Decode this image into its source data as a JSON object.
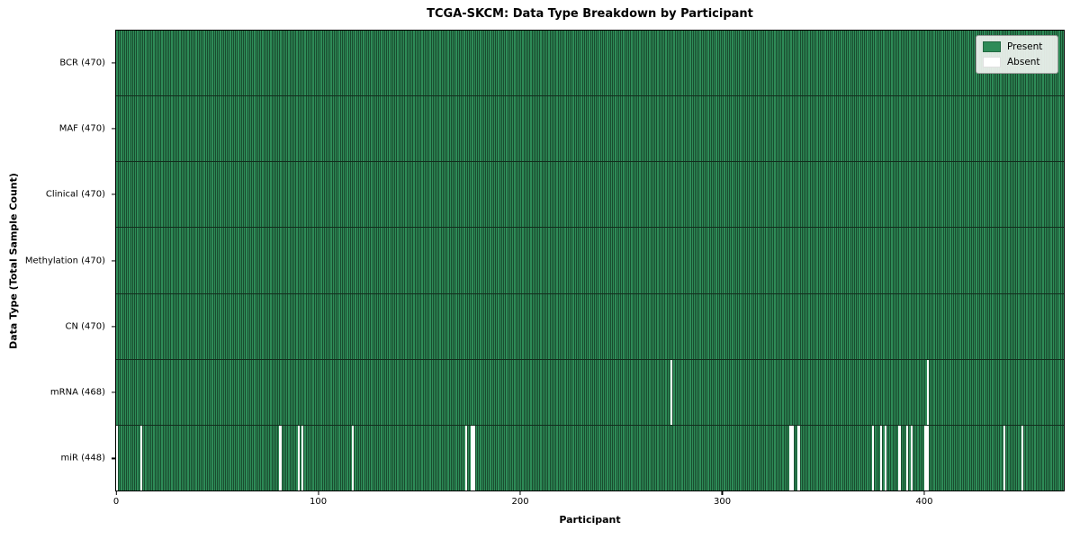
{
  "chart_data": {
    "type": "heatmap",
    "title": "TCGA-SKCM: Data Type Breakdown by Participant",
    "xlabel": "Participant",
    "ylabel": "Data Type (Total Sample Count)",
    "n_participants": 470,
    "x_ticks": [
      0,
      100,
      200,
      300,
      400
    ],
    "grid": false,
    "legend_position": "upper right",
    "rows": [
      {
        "label": "BCR (470)",
        "data_type": "BCR",
        "present_count": 470,
        "absent_participants": []
      },
      {
        "label": "MAF (470)",
        "data_type": "MAF",
        "present_count": 470,
        "absent_participants": []
      },
      {
        "label": "Clinical (470)",
        "data_type": "Clinical",
        "present_count": 470,
        "absent_participants": []
      },
      {
        "label": "Methylation (470)",
        "data_type": "Methylation",
        "present_count": 470,
        "absent_participants": []
      },
      {
        "label": "CN (470)",
        "data_type": "CN",
        "present_count": 470,
        "absent_participants": []
      },
      {
        "label": "mRNA (468)",
        "data_type": "mRNA",
        "present_count": 468,
        "absent_participants": [
          275,
          402
        ]
      },
      {
        "label": "miR (448)",
        "data_type": "miR",
        "present_count": 448,
        "absent_participants": [
          0,
          12,
          81,
          90,
          92,
          117,
          173,
          176,
          177,
          334,
          335,
          338,
          375,
          379,
          381,
          388,
          392,
          394,
          401,
          402,
          440,
          449
        ]
      }
    ],
    "legend": [
      {
        "label": "Present",
        "color": "#2e8b57"
      },
      {
        "label": "Absent",
        "color": "#ffffff"
      }
    ],
    "colors": {
      "present": "#2e8b57",
      "absent": "#ffffff",
      "cell_edge": "rgba(0,0,0,0.45)",
      "row_separator": "#122d1d",
      "spine": "#000000"
    }
  }
}
